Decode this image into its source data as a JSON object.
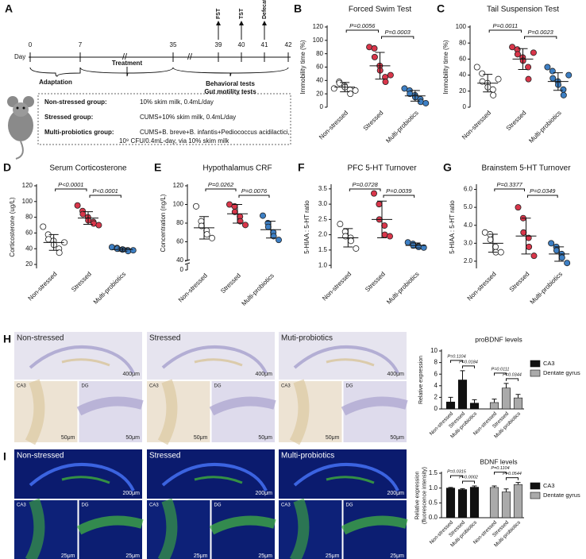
{
  "timeline": {
    "panel": "A",
    "label": "Day",
    "days": [
      0,
      7,
      35,
      39,
      40,
      41,
      42
    ],
    "tests": [
      "FST",
      "TST",
      "Defecation test"
    ],
    "phases": [
      "Adaptation",
      "Treatment",
      "Behavioral tests",
      "Gut motility tests"
    ],
    "groups": [
      {
        "name": "Non-stressed group:",
        "lines": [
          "10% skim milk, 0.4mL/day"
        ]
      },
      {
        "name": "Stressed group:",
        "lines": [
          "CUMS+10% skim milk, 0.4mL/day"
        ]
      },
      {
        "name": "Multi-probiotics group:",
        "lines": [
          "CUMS+B. breve+B. infantis+Pediococcus acidilactici,",
          "10⁹ CFU/0.4mL-day, via 10% skim milk"
        ]
      }
    ]
  },
  "chart_data": [
    {
      "type": "strip",
      "panel": "B",
      "title": "Forced Swim Test",
      "ylabel": "Immobility time (%)",
      "categories": [
        "Non-stressed",
        "Stressed",
        "Multi-probiotics"
      ],
      "groups": [
        {
          "color": "#ffffff",
          "values": [
            28,
            38,
            36,
            32,
            30,
            26,
            20,
            25
          ],
          "mean": 30,
          "sd": 7
        },
        {
          "color": "#d9364a",
          "values": [
            90,
            88,
            75,
            62,
            55,
            45,
            38,
            48
          ],
          "mean": 62,
          "sd": 20
        },
        {
          "color": "#3d7fc4",
          "values": [
            28,
            25,
            20,
            18,
            15,
            12,
            8,
            6
          ],
          "mean": 17,
          "sd": 8
        }
      ],
      "pvalues": [
        "P=0.0056",
        "P=0.0003"
      ],
      "ylim": [
        0,
        120
      ],
      "yticks": [
        0,
        20,
        40,
        60,
        80,
        100,
        120
      ]
    },
    {
      "type": "strip",
      "panel": "C",
      "title": "Tail Suspension Test",
      "ylabel": "Immobility time (%)",
      "categories": [
        "Non-stressed",
        "Stressed",
        "Multi-probiotics"
      ],
      "groups": [
        {
          "color": "#ffffff",
          "values": [
            50,
            42,
            32,
            30,
            25,
            22,
            15,
            35
          ],
          "mean": 30,
          "sd": 11
        },
        {
          "color": "#d9364a",
          "values": [
            75,
            72,
            66,
            62,
            58,
            50,
            35,
            68
          ],
          "mean": 60,
          "sd": 13
        },
        {
          "color": "#3d7fc4",
          "values": [
            50,
            45,
            36,
            32,
            28,
            22,
            15,
            40
          ],
          "mean": 32,
          "sd": 11
        }
      ],
      "pvalues": [
        "P=0.0011",
        "P=0.0023"
      ],
      "ylim": [
        0,
        100
      ],
      "yticks": [
        0,
        20,
        40,
        60,
        80,
        100
      ]
    },
    {
      "type": "strip",
      "panel": "D",
      "title": "Serum Corticosterone",
      "ylabel": "Corticosterone (ug/L)",
      "categories": [
        "Non-stressed",
        "Stressed",
        "Multi-probiotics"
      ],
      "groups": [
        {
          "color": "#ffffff",
          "values": [
            68,
            58,
            52,
            50,
            45,
            40,
            35,
            48
          ],
          "mean": 48,
          "sd": 10
        },
        {
          "color": "#d9364a",
          "values": [
            95,
            88,
            84,
            80,
            76,
            74,
            72,
            70
          ],
          "mean": 79,
          "sd": 8
        },
        {
          "color": "#3d7fc4",
          "values": [
            42,
            41,
            40,
            39,
            39,
            38,
            37,
            38
          ],
          "mean": 39,
          "sd": 2
        }
      ],
      "pvalues": [
        "P<0.0001",
        "P<0.0001"
      ],
      "ylim": [
        15,
        120
      ],
      "yticks": [
        20,
        40,
        60,
        80,
        100,
        120
      ]
    },
    {
      "type": "strip",
      "panel": "E",
      "title": "Hypothalamus CRF",
      "ylabel": "Concentration (ng/L)",
      "categories": [
        "Non-stressed",
        "Stressed",
        "Multi-probiotics"
      ],
      "groups": [
        {
          "color": "#ffffff",
          "values": [
            98,
            82,
            77,
            72,
            68,
            64
          ],
          "mean": 75,
          "sd": 12
        },
        {
          "color": "#d9364a",
          "values": [
            100,
            98,
            92,
            87,
            82,
            78
          ],
          "mean": 90,
          "sd": 10
        },
        {
          "color": "#3d7fc4",
          "values": [
            88,
            80,
            76,
            70,
            66,
            62
          ],
          "mean": 73,
          "sd": 9
        }
      ],
      "pvalues": [
        "P=0.0262",
        "P=0.0076"
      ],
      "ylim": [
        40,
        120
      ],
      "yticks": [
        0,
        40,
        60,
        80,
        100,
        120
      ],
      "axis_break": true
    },
    {
      "type": "strip",
      "panel": "F",
      "title": "PFC 5-HT Turnover",
      "ylabel": "5-HIAA : 5-HT ratio",
      "categories": [
        "Non-stressed",
        "Stressed",
        "Multi-probiotics"
      ],
      "groups": [
        {
          "color": "#ffffff",
          "values": [
            2.35,
            2.1,
            1.95,
            1.9,
            1.8,
            1.55
          ],
          "mean": 1.9,
          "sd": 0.3
        },
        {
          "color": "#d9364a",
          "values": [
            3.35,
            3.0,
            2.5,
            2.3,
            2.0,
            1.95
          ],
          "mean": 2.5,
          "sd": 0.6
        },
        {
          "color": "#3d7fc4",
          "values": [
            1.75,
            1.7,
            1.65,
            1.62,
            1.6,
            1.58
          ],
          "mean": 1.65,
          "sd": 0.08
        }
      ],
      "pvalues": [
        "P=0.0728",
        "P=0.0039"
      ],
      "ylim": [
        0.9,
        3.6
      ],
      "yticks": [
        {
          "value": 1.0,
          "label": "1.0"
        },
        1.5,
        {
          "value": 2.0,
          "label": "2.0"
        },
        2.5,
        {
          "value": 3.0,
          "label": "3.0"
        },
        3.5
      ]
    },
    {
      "type": "strip",
      "panel": "G",
      "title": "Brainstem 5-HT Turnover",
      "ylabel": "5-HIAA : 5-HT ratio",
      "categories": [
        "Non-stressed",
        "Stressed",
        "Multi-probiotics"
      ],
      "groups": [
        {
          "color": "#ffffff",
          "values": [
            3.6,
            3.5,
            3.2,
            2.8,
            2.5,
            2.5
          ],
          "mean": 3.0,
          "sd": 0.5
        },
        {
          "color": "#d9364a",
          "values": [
            5.0,
            4.4,
            3.6,
            3.3,
            2.8,
            2.3
          ],
          "mean": 3.4,
          "sd": 1.0
        },
        {
          "color": "#3d7fc4",
          "values": [
            3.0,
            2.8,
            2.6,
            2.4,
            2.2,
            1.9
          ],
          "mean": 2.4,
          "sd": 0.4
        }
      ],
      "pvalues": [
        "P=0.3377",
        "P=0.0349"
      ],
      "ylim": [
        1.6,
        6.2
      ],
      "yticks": [
        {
          "value": 2.0,
          "label": "2.0"
        },
        {
          "value": 3.0,
          "label": "3.0"
        },
        {
          "value": 4.0,
          "label": "4.0"
        },
        {
          "value": 5.0,
          "label": "5.0"
        },
        {
          "value": 6.0,
          "label": "6.0"
        }
      ]
    },
    {
      "type": "bar",
      "title": "proBDNF levels",
      "ylabel": [
        "Relative expression"
      ],
      "categories": [
        "Non-stressed",
        "Stressed",
        "Multi-probiotics"
      ],
      "series": [
        {
          "name": "CA3",
          "color": "#111111",
          "values": [
            1.2,
            5.0,
            1.0
          ],
          "errors": [
            0.8,
            1.6,
            0.6
          ],
          "pvalues": [
            "P=0.1104",
            "P=0.0184"
          ]
        },
        {
          "name": "Dentate gyrus",
          "color": "#aaaaaa",
          "values": [
            1.1,
            3.6,
            1.9
          ],
          "errors": [
            0.6,
            0.8,
            0.6
          ],
          "pvalues": [
            "P=0.0111",
            "P=0.0344"
          ]
        }
      ],
      "ylim": [
        0,
        10
      ],
      "yticks": [
        0,
        2,
        4,
        6,
        8,
        10
      ]
    },
    {
      "type": "bar",
      "title": "BDNF levels",
      "ylabel": [
        "Relative expression",
        "(fluorescence intensity)"
      ],
      "categories": [
        "Non-stressed",
        "Stressed",
        "Multi-probiotics"
      ],
      "series": [
        {
          "name": "CA3",
          "color": "#111111",
          "values": [
            1.0,
            0.95,
            1.03
          ],
          "errors": [
            0.02,
            0.03,
            0.04
          ],
          "pvalues": [
            "P=0.0315",
            "P=0.0002"
          ]
        },
        {
          "name": "Dentate gyrus",
          "color": "#aaaaaa",
          "values": [
            1.02,
            0.87,
            1.12
          ],
          "errors": [
            0.05,
            0.1,
            0.07
          ],
          "pvalues": [
            "P=0.1104",
            "P=0.0544"
          ]
        }
      ],
      "ylim": [
        0,
        1.5
      ],
      "yticks": [
        {
          "value": 0.0,
          "label": "0.0"
        },
        0.5,
        {
          "value": 1.0,
          "label": "1.0"
        },
        1.5
      ]
    }
  ],
  "micrographs": [
    {
      "panel": "H",
      "style": "ihc",
      "labels": [
        "Non-stressed",
        "Stressed",
        "Muti-probiotics"
      ],
      "scale_overview": "400μm",
      "regions": [
        "CA3",
        "DG"
      ],
      "scale_detail": "50μm"
    },
    {
      "panel": "I",
      "style": "if",
      "labels": [
        "Non-stressed",
        "Stressed",
        "Multi-probiotics"
      ],
      "scale_overview": "200μm",
      "regions": [
        "CA3",
        "DG"
      ],
      "scale_detail": "25μm"
    }
  ]
}
